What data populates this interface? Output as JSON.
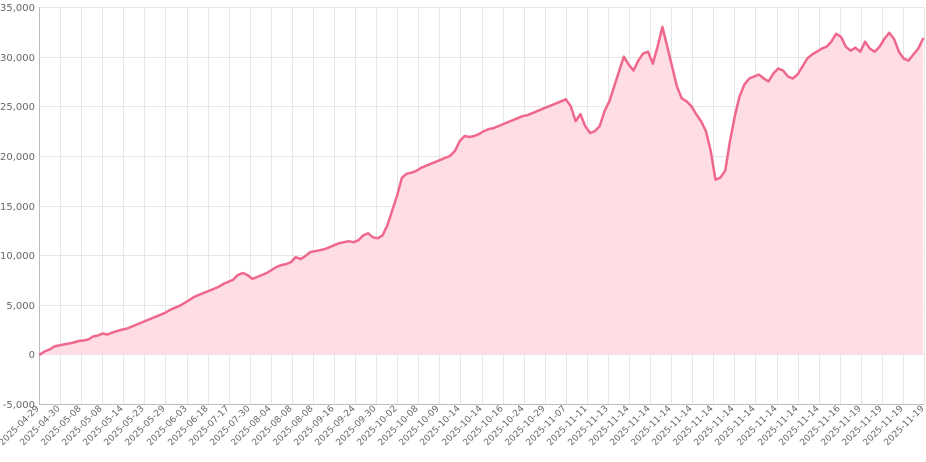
{
  "chart_data": {
    "type": "area",
    "colors": {
      "line": "#f0678d",
      "fill": "#ffdde5",
      "grid": "#e6e6e6"
    },
    "ylim": [
      -5000,
      35000
    ],
    "yticks": [
      -5000,
      0,
      5000,
      10000,
      15000,
      20000,
      25000,
      30000,
      35000
    ],
    "ytick_labels": [
      "-5,000",
      "0",
      "5,000",
      "10,000",
      "15,000",
      "20,000",
      "25,000",
      "30,000",
      "35,000"
    ],
    "grid": true,
    "legend": "none",
    "x_tick_labels": [
      "2025-04-29",
      "2025-04-30",
      "2025-05-08",
      "2025-05-08",
      "2025-05-14",
      "2025-05-23",
      "2025-05-29",
      "2025-06-03",
      "2025-06-18",
      "2025-07-17",
      "2025-07-30",
      "2025-08-04",
      "2025-08-08",
      "2025-08-08",
      "2025-09-16",
      "2025-09-24",
      "2025-09-30",
      "2025-10-02",
      "2025-10-08",
      "2025-10-09",
      "2025-10-14",
      "2025-10-14",
      "2025-10-16",
      "2025-10-24",
      "2025-10-29",
      "2025-11-07",
      "2025-11-11",
      "2025-11-13",
      "2025-11-14",
      "2025-11-14",
      "2025-11-14",
      "2025-11-14",
      "2025-11-14",
      "2025-11-14",
      "2025-11-14",
      "2025-11-14",
      "2025-11-14",
      "2025-11-14",
      "2025-11-16",
      "2025-11-19",
      "2025-11-19",
      "2025-11-19",
      "2025-11-19"
    ],
    "series": [
      {
        "values": [
          0,
          300,
          500,
          800,
          900,
          1000,
          1100,
          1200,
          1350,
          1400,
          1500,
          1800,
          1900,
          2100,
          2000,
          2200,
          2350,
          2500,
          2600,
          2800,
          3000,
          3200,
          3400,
          3600,
          3800,
          4000,
          4200,
          4500,
          4700,
          4900,
          5200,
          5500,
          5800,
          6000,
          6200,
          6400,
          6600,
          6800,
          7100,
          7300,
          7500,
          8000,
          8200,
          8000,
          7600,
          7800,
          8000,
          8200,
          8500,
          8800,
          9000,
          9100,
          9300,
          9800,
          9600,
          9900,
          10300,
          10400,
          10500,
          10600,
          10800,
          11000,
          11200,
          11300,
          11400,
          11300,
          11500,
          12000,
          12200,
          11800,
          11700,
          12000,
          13000,
          14500,
          16000,
          17800,
          18200,
          18300,
          18500,
          18800,
          19000,
          19200,
          19400,
          19600,
          19800,
          20000,
          20500,
          21500,
          22000,
          21900,
          22000,
          22200,
          22500,
          22700,
          22800,
          23000,
          23200,
          23400,
          23600,
          23800,
          24000,
          24100,
          24300,
          24500,
          24700,
          24900,
          25100,
          25300,
          25500,
          25700,
          25000,
          23500,
          24200,
          23000,
          22300,
          22500,
          23000,
          24500,
          25500,
          27000,
          28500,
          30000,
          29200,
          28600,
          29600,
          30300,
          30500,
          29300,
          31000,
          33000,
          31000,
          29000,
          27000,
          25800,
          25500,
          25000,
          24200,
          23500,
          22500,
          20500,
          17600,
          17800,
          18500,
          21500,
          24000,
          26000,
          27200,
          27800,
          28000,
          28200,
          27800,
          27500,
          28300,
          28800,
          28600,
          28000,
          27800,
          28200,
          29000,
          29800,
          30200,
          30500,
          30800,
          31000,
          31500,
          32300,
          32000,
          31000,
          30600,
          30900,
          30500,
          31500,
          30800,
          30500,
          31000,
          31800,
          32400,
          31800,
          30500,
          29800,
          29600,
          30200,
          30800,
          31800
        ]
      }
    ]
  }
}
